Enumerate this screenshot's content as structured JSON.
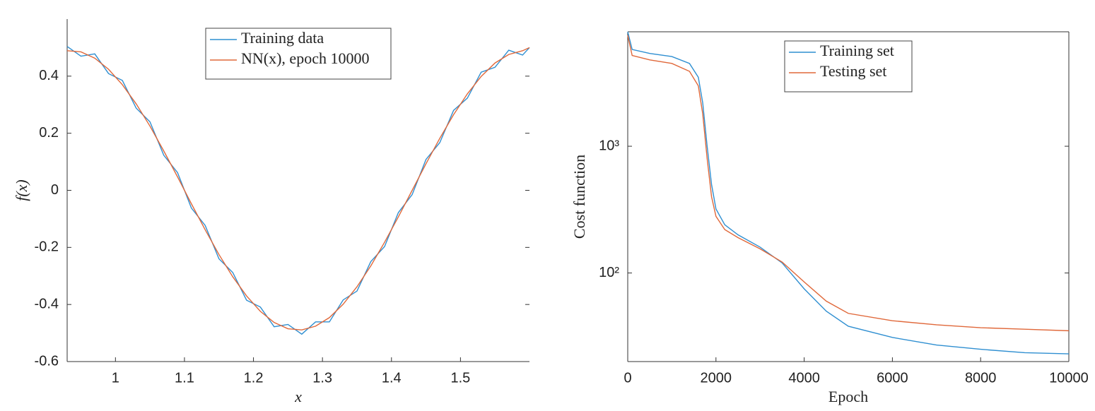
{
  "chart_data": [
    {
      "type": "line",
      "xlabel": "x",
      "ylabel": "f(x)",
      "x": [
        0.93,
        0.95,
        0.97,
        0.99,
        1.01,
        1.03,
        1.05,
        1.07,
        1.09,
        1.11,
        1.13,
        1.15,
        1.17,
        1.19,
        1.21,
        1.23,
        1.25,
        1.27,
        1.29,
        1.31,
        1.33,
        1.35,
        1.37,
        1.39,
        1.41,
        1.43,
        1.45,
        1.47,
        1.49,
        1.51,
        1.53,
        1.55,
        1.57,
        1.59,
        1.6
      ],
      "series": [
        {
          "name": "Training data",
          "color": "#2f8fd1",
          "values": [
            0.504,
            0.47,
            0.478,
            0.409,
            0.385,
            0.288,
            0.24,
            0.123,
            0.062,
            -0.062,
            -0.123,
            -0.24,
            -0.288,
            -0.385,
            -0.409,
            -0.478,
            -0.47,
            -0.504,
            -0.461,
            -0.461,
            -0.384,
            -0.353,
            -0.25,
            -0.197,
            -0.078,
            -0.015,
            0.108,
            0.167,
            0.28,
            0.323,
            0.414,
            0.431,
            0.491,
            0.474,
            0.5
          ]
        },
        {
          "name": "NN(x), epoch 10000",
          "color": "#e0683a",
          "values": [
            0.489,
            0.485,
            0.463,
            0.424,
            0.37,
            0.303,
            0.225,
            0.138,
            0.047,
            -0.047,
            -0.138,
            -0.225,
            -0.303,
            -0.37,
            -0.424,
            -0.463,
            -0.485,
            -0.489,
            -0.476,
            -0.446,
            -0.399,
            -0.338,
            -0.265,
            -0.182,
            -0.093,
            0,
            0.093,
            0.182,
            0.265,
            0.338,
            0.399,
            0.446,
            0.476,
            0.489,
            0.5
          ]
        }
      ],
      "xlim": [
        0.93,
        1.6
      ],
      "xticks": [
        1,
        1.1,
        1.2,
        1.3,
        1.4,
        1.5
      ],
      "ylim": [
        -0.6,
        0.6
      ],
      "yticks": [
        -0.6,
        -0.4,
        -0.2,
        0,
        0.2,
        0.4
      ],
      "legend": "upper center"
    },
    {
      "type": "line",
      "xlabel": "Epoch",
      "ylabel": "Cost function",
      "ylog": true,
      "x": [
        0,
        100,
        500,
        1000,
        1400,
        1600,
        1700,
        1800,
        1900,
        2000,
        2200,
        2500,
        3000,
        3500,
        4000,
        4500,
        5000,
        6000,
        7000,
        8000,
        9000,
        10000
      ],
      "series": [
        {
          "name": "Training set",
          "color": "#2f8fd1",
          "values": [
            8000,
            5800,
            5400,
            5100,
            4500,
            3500,
            2200,
            1000,
            500,
            320,
            240,
            200,
            160,
            120,
            75,
            50,
            38,
            31,
            27,
            25,
            23.5,
            23
          ]
        },
        {
          "name": "Testing set",
          "color": "#e0683a",
          "values": [
            7500,
            5200,
            4800,
            4500,
            3900,
            3000,
            1800,
            800,
            400,
            280,
            220,
            190,
            155,
            122,
            85,
            60,
            48,
            42,
            39,
            37,
            36,
            35
          ]
        }
      ],
      "xlim": [
        0,
        10000
      ],
      "xticks": [
        0,
        2000,
        4000,
        6000,
        8000,
        10000
      ],
      "ylim": [
        20,
        8000
      ],
      "yticks": [
        {
          "value": 100,
          "label": "10²"
        },
        {
          "value": 1000,
          "label": "10³"
        }
      ],
      "legend": "upper center"
    }
  ]
}
